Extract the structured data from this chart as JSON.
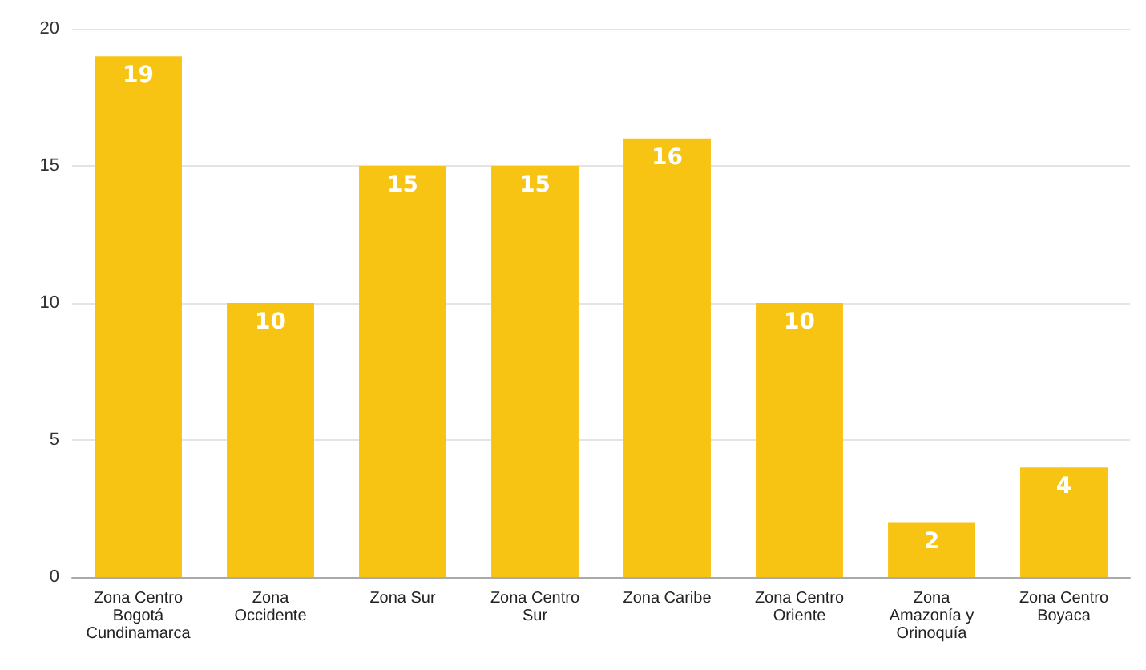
{
  "chart_data": {
    "type": "bar",
    "categories": [
      "Zona Centro\nBogotá\nCundinamarca",
      "Zona\nOccidente",
      "Zona Sur",
      "Zona Centro\nSur",
      "Zona Caribe",
      "Zona Centro\nOriente",
      "Zona\nAmazonía y\nOrinoquía",
      "Zona Centro\nBoyaca"
    ],
    "values": [
      19,
      10,
      15,
      15,
      16,
      10,
      2,
      4
    ],
    "color": "#f8c414",
    "ylim": [
      0,
      20
    ],
    "yticks": [
      0,
      5,
      10,
      15,
      20
    ],
    "grid": "y",
    "data_labels": true
  }
}
